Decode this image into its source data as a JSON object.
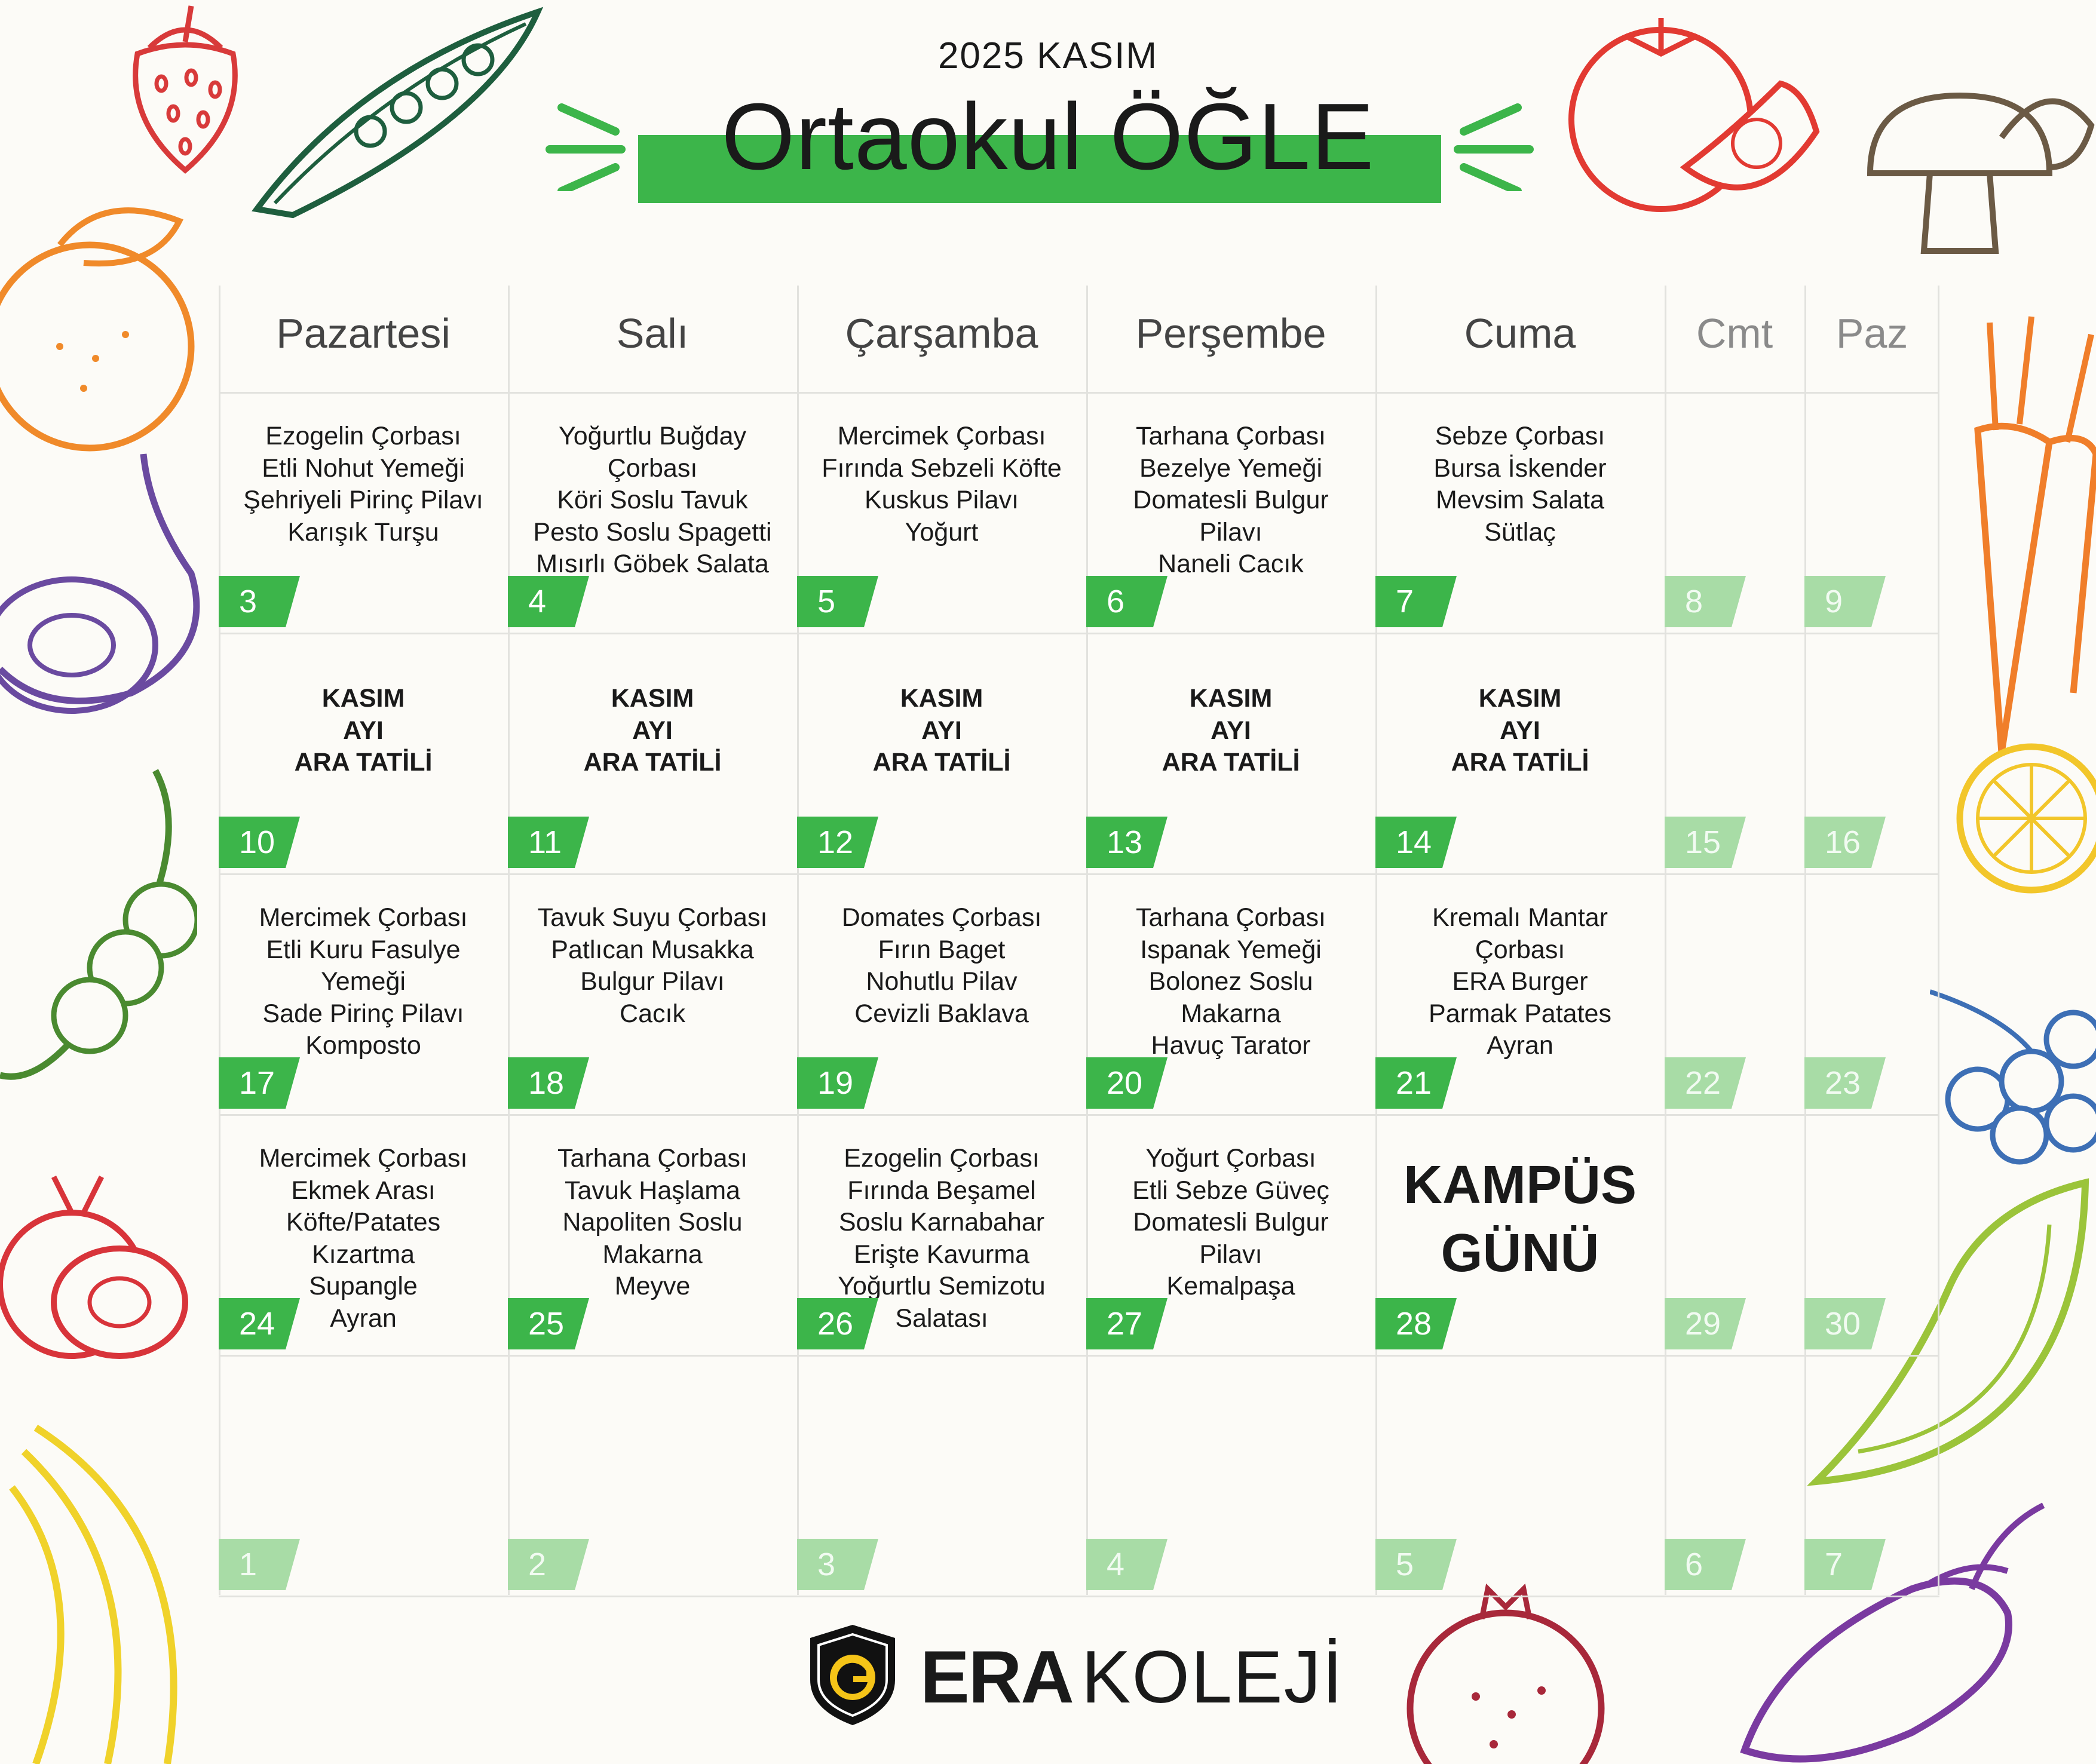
{
  "header": {
    "subtitle": "2025 KASIM",
    "title": "Ortaokul ÖĞLE",
    "accent_color": "#3cb54a"
  },
  "days": [
    "Pazartesi",
    "Salı",
    "Çarşamba",
    "Perşembe",
    "Cuma",
    "Cmt",
    "Paz"
  ],
  "weeks": [
    [
      {
        "date": "3",
        "menu": "Ezogelin Çorbası\nEtli Nohut Yemeği\nŞehriyeli Pirinç Pilavı\nKarışık Turşu"
      },
      {
        "date": "4",
        "menu": "Yoğurtlu Buğday\nÇorbası\nKöri Soslu Tavuk\nPesto Soslu Spagetti\nMısırlı Göbek Salata"
      },
      {
        "date": "5",
        "menu": "Mercimek Çorbası\nFırında Sebzeli Köfte\nKuskus Pilavı\nYoğurt"
      },
      {
        "date": "6",
        "menu": "Tarhana Çorbası\nBezelye Yemeği\nDomatesli Bulgur\nPilavı\nNaneli Cacık"
      },
      {
        "date": "7",
        "menu": "Sebze Çorbası\nBursa İskender\nMevsim Salata\nSütlaç"
      },
      {
        "date": "8"
      },
      {
        "date": "9"
      }
    ],
    [
      {
        "date": "10",
        "holiday": "KASIM\nAYI\nARA TATİLİ"
      },
      {
        "date": "11",
        "holiday": "KASIM\nAYI\nARA TATİLİ"
      },
      {
        "date": "12",
        "holiday": "KASIM\nAYI\nARA TATİLİ"
      },
      {
        "date": "13",
        "holiday": "KASIM\nAYI\nARA TATİLİ"
      },
      {
        "date": "14",
        "holiday": "KASIM\nAYI\nARA TATİLİ"
      },
      {
        "date": "15"
      },
      {
        "date": "16"
      }
    ],
    [
      {
        "date": "17",
        "menu": "Mercimek Çorbası\nEtli Kuru Fasulye\nYemeği\nSade Pirinç Pilavı\nKomposto"
      },
      {
        "date": "18",
        "menu": "Tavuk Suyu Çorbası\nPatlıcan Musakka\nBulgur Pilavı\nCacık"
      },
      {
        "date": "19",
        "menu": "Domates Çorbası\nFırın Baget\nNohutlu Pilav\nCevizli Baklava"
      },
      {
        "date": "20",
        "menu": "Tarhana Çorbası\nIspanak Yemeği\nBolonez Soslu\nMakarna\nHavuç Tarator"
      },
      {
        "date": "21",
        "menu": "Kremalı Mantar\nÇorbası\nERA Burger\nParmak Patates\nAyran"
      },
      {
        "date": "22"
      },
      {
        "date": "23"
      }
    ],
    [
      {
        "date": "24",
        "menu": "Mercimek Çorbası\nEkmek Arası\nKöfte/Patates\nKızartma\nSupangle\nAyran"
      },
      {
        "date": "25",
        "menu": "Tarhana Çorbası\nTavuk Haşlama\nNapoliten Soslu\nMakarna\nMeyve"
      },
      {
        "date": "26",
        "menu": "Ezogelin Çorbası\nFırında Beşamel\nSoslu Karnabahar\nErişte Kavurma\nYoğurtlu Semizotu\nSalatası"
      },
      {
        "date": "27",
        "menu": "Yoğurt Çorbası\nEtli Sebze Güveç\nDomatesli Bulgur\nPilavı\nKemalpaşa"
      },
      {
        "date": "28",
        "special": "KAMPÜS\nGÜNÜ"
      },
      {
        "date": "29"
      },
      {
        "date": "30"
      }
    ],
    [
      {
        "date": "1"
      },
      {
        "date": "2"
      },
      {
        "date": "3"
      },
      {
        "date": "4"
      },
      {
        "date": "5"
      },
      {
        "date": "6"
      },
      {
        "date": "7"
      }
    ]
  ],
  "footer": {
    "brand_bold": "ERA",
    "brand_light": "KOLEJİ"
  }
}
